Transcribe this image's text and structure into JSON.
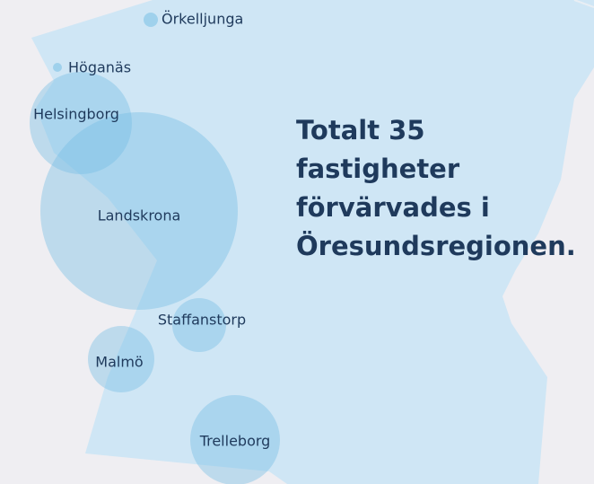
{
  "headline": "Totalt 35 fastigheter förvärvades i Öresundsregionen.",
  "places": [
    {
      "label": "Örkelljunga"
    },
    {
      "label": "Höganäs"
    },
    {
      "label": "Helsingborg"
    },
    {
      "label": "Landskrona"
    },
    {
      "label": "Staffanstorp"
    },
    {
      "label": "Malmö"
    },
    {
      "label": "Trelleborg"
    }
  ]
}
